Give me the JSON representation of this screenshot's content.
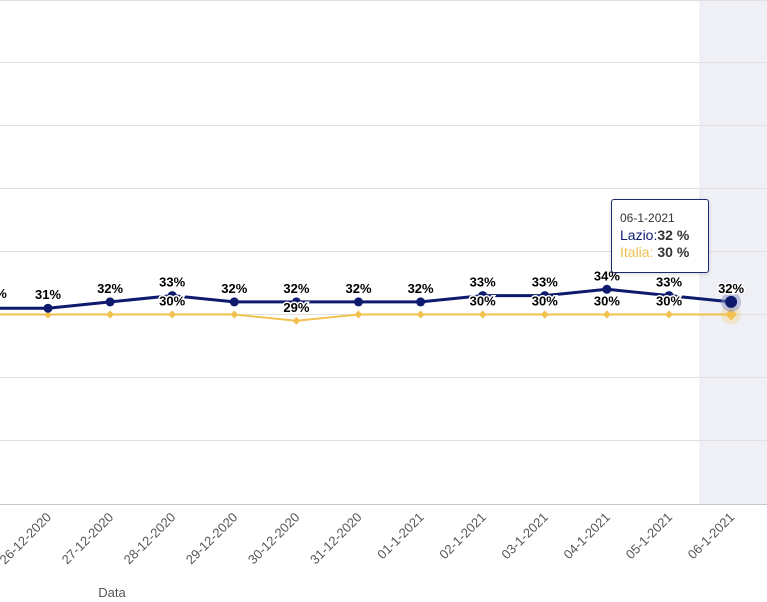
{
  "chart_data": {
    "type": "line",
    "categories": [
      "26-12-2020",
      "27-12-2020",
      "28-12-2020",
      "29-12-2020",
      "30-12-2020",
      "31-12-2020",
      "01-1-2021",
      "02-1-2021",
      "03-1-2021",
      "04-1-2021",
      "05-1-2021",
      "06-1-2021"
    ],
    "series": [
      {
        "name": "Lazio",
        "values": [
          31,
          32,
          33,
          32,
          32,
          32,
          32,
          33,
          33,
          34,
          33,
          32
        ],
        "labels": [
          "31%",
          "32%",
          "33%",
          "32%",
          "32%",
          "32%",
          "32%",
          "33%",
          "33%",
          "34%",
          "33%",
          "32%"
        ],
        "color": "#0d1a6e"
      },
      {
        "name": "Italia",
        "values": [
          30,
          30,
          30,
          30,
          29,
          30,
          30,
          30,
          30,
          30,
          30,
          30
        ],
        "labels": [
          "",
          "",
          "30%",
          "",
          "29%",
          "",
          "",
          "30%",
          "30%",
          "30%",
          "30%",
          ""
        ],
        "color": "#f2c14e"
      }
    ],
    "first_visible_labels": {
      "lazio": "%"
    },
    "xlabel": "Data",
    "highlight_category": "06-1-2021",
    "grid": true
  },
  "tooltip": {
    "title": "06-1-2021",
    "lazio_label": "Lazio:",
    "lazio_value": "32 %",
    "italia_label": "Italia:",
    "italia_value": "30 %"
  },
  "colors": {
    "lazio": "#0d1a6e",
    "italia": "#f2c14e",
    "grid": "#e0e0e0",
    "highlight": "#eef0f6"
  }
}
